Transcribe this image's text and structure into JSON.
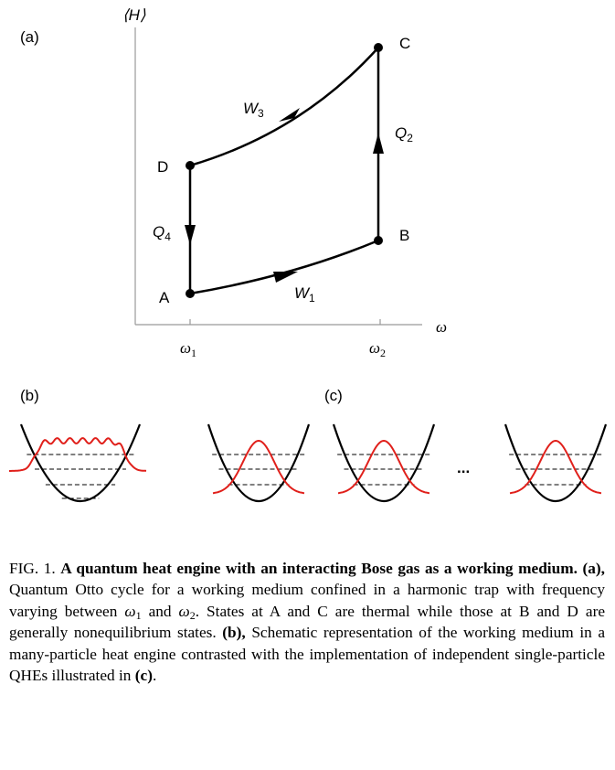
{
  "panel_a": {
    "label": "(a)",
    "y_axis_label": "⟨H⟩",
    "x_axis_label": "ω",
    "x_ticks": [
      {
        "base": "ω",
        "sub": "1"
      },
      {
        "base": "ω",
        "sub": "2"
      }
    ],
    "points": [
      "A",
      "B",
      "C",
      "D"
    ],
    "processes": [
      {
        "base": "W",
        "sub": "1"
      },
      {
        "base": "Q",
        "sub": "2"
      },
      {
        "base": "W",
        "sub": "3"
      },
      {
        "base": "Q",
        "sub": "4"
      }
    ]
  },
  "panel_b": {
    "label": "(b)"
  },
  "panel_c": {
    "label": "(c)",
    "ellipsis": "..."
  },
  "caption": {
    "fig_label": "FIG. 1.",
    "title": "A quantum heat engine with an interacting Bose gas as a working medium.",
    "part_a": "(a),",
    "text_a1": "Quantum Otto cycle for a working medium confined in a harmonic trap with frequency varying between",
    "omega": "ω",
    "sub1": "1",
    "and": "and",
    "sub2": "2",
    "text_a2": ". States at A and C are thermal while those at B and D are generally nonequilibrium states.",
    "part_b": "(b),",
    "text_b": "Schematic representation of the working medium in a many-particle heat engine contrasted with the implementation of independent single-particle QHEs illustrated in",
    "part_c": "(c)",
    "end": "."
  }
}
